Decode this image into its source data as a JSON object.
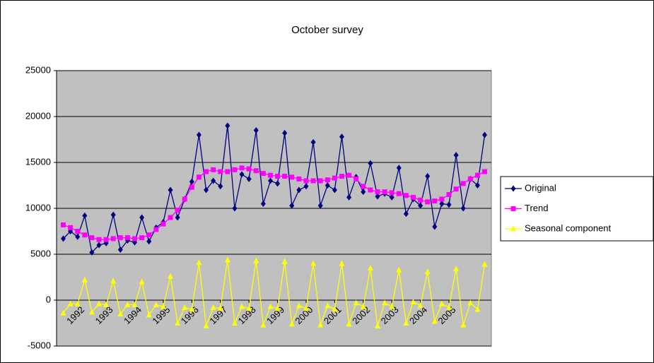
{
  "chart_data": {
    "type": "line",
    "title": "October survey",
    "categories": [
      null,
      null,
      "1992",
      null,
      null,
      null,
      "1993",
      null,
      null,
      null,
      "1994",
      null,
      null,
      null,
      "1995",
      null,
      null,
      null,
      "1996",
      null,
      null,
      null,
      "1997",
      null,
      null,
      null,
      "1998",
      null,
      null,
      null,
      "1999",
      null,
      null,
      null,
      "2000",
      null,
      null,
      null,
      "2001",
      null,
      null,
      null,
      "2002",
      null,
      null,
      null,
      "2003",
      null,
      null,
      null,
      "2004",
      null,
      null,
      null,
      "2005",
      null,
      null,
      null,
      null,
      null
    ],
    "series": [
      {
        "name": "Original",
        "color": "#000080",
        "marker": "diamond",
        "values": [
          6700,
          7500,
          6900,
          9200,
          5200,
          6000,
          6200,
          9300,
          5500,
          6500,
          6300,
          9000,
          6400,
          7900,
          8500,
          12000,
          9000,
          11000,
          12900,
          18000,
          12000,
          13000,
          12400,
          19000,
          10000,
          13700,
          13200,
          18500,
          10500,
          13000,
          12700,
          18200,
          10300,
          12000,
          12400,
          17200,
          10300,
          12500,
          12000,
          17800,
          11200,
          13400,
          11800,
          14900,
          11300,
          11600,
          11200,
          14400,
          9400,
          11000,
          10300,
          13500,
          8000,
          10500,
          10400,
          15800,
          10000,
          13200,
          12500,
          18000
        ]
      },
      {
        "name": "Trend",
        "color": "#ff00ff",
        "marker": "square",
        "values": [
          8200,
          7900,
          7500,
          7100,
          6800,
          6600,
          6600,
          6700,
          6800,
          6800,
          6700,
          6800,
          7100,
          7700,
          8300,
          9000,
          9800,
          11000,
          12300,
          13400,
          14000,
          14200,
          14000,
          14000,
          14200,
          14400,
          14300,
          14100,
          13800,
          13600,
          13500,
          13500,
          13400,
          13200,
          13000,
          13000,
          13000,
          13100,
          13300,
          13500,
          13600,
          13200,
          12400,
          12000,
          11800,
          11800,
          11700,
          11600,
          11400,
          11200,
          10900,
          10700,
          10800,
          11000,
          11500,
          12100,
          12700,
          13200,
          13600,
          14000
        ]
      },
      {
        "name": "Seasonal component",
        "color": "#ffff00",
        "marker": "triangle",
        "values": [
          -1400,
          -400,
          -400,
          2200,
          -1300,
          -400,
          -500,
          2100,
          -1500,
          -500,
          -500,
          2000,
          -1600,
          -500,
          -700,
          2600,
          -2500,
          -800,
          -1000,
          4100,
          -2800,
          -800,
          -900,
          4400,
          -2500,
          -700,
          -900,
          4300,
          -2700,
          -700,
          -900,
          4200,
          -2600,
          -600,
          -900,
          4000,
          -2700,
          -600,
          -1000,
          4000,
          -2600,
          -300,
          -700,
          3500,
          -2800,
          -300,
          -700,
          3300,
          -2500,
          -200,
          -600,
          3100,
          -2300,
          -400,
          -800,
          3400,
          -2700,
          -300,
          -1000,
          3900
        ]
      }
    ],
    "ylim": [
      -5000,
      25000
    ],
    "yticks": [
      -5000,
      0,
      5000,
      10000,
      15000,
      20000,
      25000
    ],
    "grid": true,
    "legend": "right",
    "plot_background": "#c0c0c0"
  }
}
